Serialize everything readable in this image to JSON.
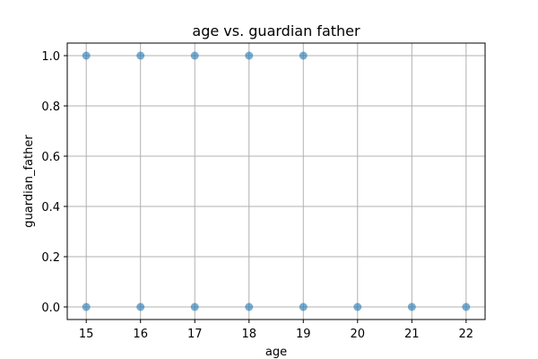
{
  "chart_data": {
    "type": "scatter",
    "title": "age vs. guardian father",
    "xlabel": "age",
    "ylabel": "guardian_father",
    "xlim": [
      14.65,
      22.35
    ],
    "ylim": [
      -0.05,
      1.05
    ],
    "xticks": [
      15,
      16,
      17,
      18,
      19,
      20,
      21,
      22
    ],
    "yticks": [
      0.0,
      0.2,
      0.4,
      0.6,
      0.8,
      1.0
    ],
    "ytick_labels": [
      "0.0",
      "0.2",
      "0.4",
      "0.6",
      "0.8",
      "1.0"
    ],
    "grid": true,
    "color": "#1f77b4",
    "points": [
      {
        "x": 15,
        "y": 1
      },
      {
        "x": 16,
        "y": 1
      },
      {
        "x": 17,
        "y": 1
      },
      {
        "x": 18,
        "y": 1
      },
      {
        "x": 19,
        "y": 1
      },
      {
        "x": 15,
        "y": 0
      },
      {
        "x": 16,
        "y": 0
      },
      {
        "x": 17,
        "y": 0
      },
      {
        "x": 18,
        "y": 0
      },
      {
        "x": 19,
        "y": 0
      },
      {
        "x": 20,
        "y": 0
      },
      {
        "x": 21,
        "y": 0
      },
      {
        "x": 22,
        "y": 0
      }
    ]
  }
}
